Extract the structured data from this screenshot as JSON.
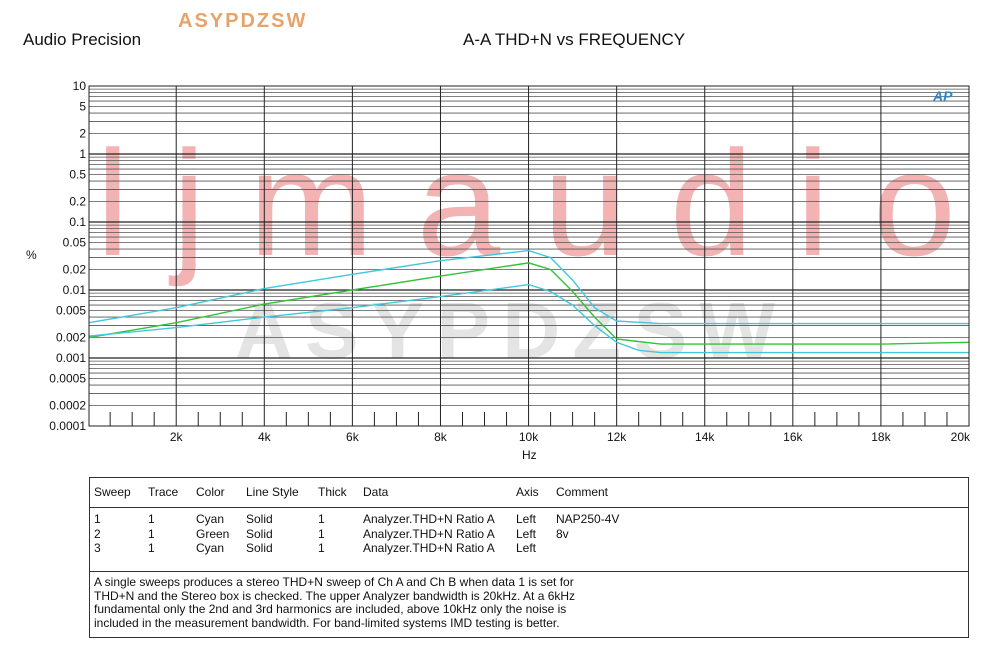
{
  "header": {
    "brand": "Audio Precision",
    "watermark_top": "ASYPDZSW",
    "title": "A-A THD+N vs FREQUENCY",
    "logo": "AP"
  },
  "chart_data": {
    "type": "line",
    "title": "A-A THD+N vs FREQUENCY",
    "xlabel": "Hz",
    "ylabel": "%",
    "xlim": [
      20,
      20000
    ],
    "ylim": [
      0.0001,
      10
    ],
    "yscale": "log",
    "grid": true,
    "x_ticks": [
      {
        "v": 2000,
        "label": "2k"
      },
      {
        "v": 4000,
        "label": "4k"
      },
      {
        "v": 6000,
        "label": "6k"
      },
      {
        "v": 8000,
        "label": "8k"
      },
      {
        "v": 10000,
        "label": "10k"
      },
      {
        "v": 12000,
        "label": "12k"
      },
      {
        "v": 14000,
        "label": "14k"
      },
      {
        "v": 16000,
        "label": "16k"
      },
      {
        "v": 18000,
        "label": "18k"
      },
      {
        "v": 20000,
        "label": "20k"
      }
    ],
    "y_ticks": [
      {
        "v": 10,
        "label": "10"
      },
      {
        "v": 5,
        "label": "5"
      },
      {
        "v": 2,
        "label": "2"
      },
      {
        "v": 1,
        "label": "1"
      },
      {
        "v": 0.5,
        "label": "0.5"
      },
      {
        "v": 0.2,
        "label": "0.2"
      },
      {
        "v": 0.1,
        "label": "0.1"
      },
      {
        "v": 0.05,
        "label": "0.05"
      },
      {
        "v": 0.02,
        "label": "0.02"
      },
      {
        "v": 0.01,
        "label": "0.01"
      },
      {
        "v": 0.005,
        "label": "0.005"
      },
      {
        "v": 0.002,
        "label": "0.002"
      },
      {
        "v": 0.001,
        "label": "0.001"
      },
      {
        "v": 0.0005,
        "label": "0.0005"
      },
      {
        "v": 0.0002,
        "label": "0.0002"
      },
      {
        "v": 0.0001,
        "label": "0.0001"
      }
    ],
    "series": [
      {
        "color": "#40c8dc",
        "x": [
          20,
          2000,
          4000,
          6000,
          8000,
          10000,
          10500,
          11000,
          11500,
          12000,
          13000,
          14000,
          16000,
          18000,
          20000
        ],
        "y": [
          0.0033,
          0.0055,
          0.0105,
          0.017,
          0.027,
          0.038,
          0.03,
          0.014,
          0.0055,
          0.0035,
          0.0032,
          0.0032,
          0.0032,
          0.0032,
          0.0032
        ]
      },
      {
        "color": "#33c23a",
        "x": [
          20,
          2000,
          4000,
          6000,
          8000,
          10000,
          10500,
          11000,
          11500,
          12000,
          13000,
          14000,
          16000,
          18000,
          20000
        ],
        "y": [
          0.002,
          0.0033,
          0.0062,
          0.01,
          0.016,
          0.025,
          0.02,
          0.0095,
          0.004,
          0.0019,
          0.0016,
          0.0016,
          0.0016,
          0.0016,
          0.0017
        ]
      },
      {
        "color": "#40c8dc",
        "x": [
          20,
          2000,
          4000,
          6000,
          8000,
          10000,
          10500,
          11000,
          11500,
          12000,
          12500,
          13000,
          14000,
          16000,
          18000,
          20000
        ],
        "y": [
          0.0021,
          0.0028,
          0.004,
          0.0055,
          0.008,
          0.012,
          0.0095,
          0.006,
          0.003,
          0.0017,
          0.0013,
          0.0012,
          0.0012,
          0.0012,
          0.0012,
          0.0012
        ]
      }
    ]
  },
  "legend": {
    "headers": [
      "Sweep",
      "Trace",
      "Color",
      "Line Style",
      "Thick",
      "Data",
      "Axis",
      "Comment"
    ],
    "rows": [
      {
        "sweep": "1",
        "trace": "1",
        "color": "Cyan",
        "style": "Solid",
        "thick": "1",
        "data": "Analyzer.THD+N Ratio A",
        "axis": "Left",
        "comment": "NAP250-4V"
      },
      {
        "sweep": "2",
        "trace": "1",
        "color": "Green",
        "style": "Solid",
        "thick": "1",
        "data": "Analyzer.THD+N Ratio A",
        "axis": "Left",
        "comment": "8v"
      },
      {
        "sweep": "3",
        "trace": "1",
        "color": "Cyan",
        "style": "Solid",
        "thick": "1",
        "data": "Analyzer.THD+N Ratio A",
        "axis": "Left",
        "comment": ""
      }
    ],
    "note_lines": [
      "A single sweeps produces a stereo THD+N sweep of Ch A and Ch B when data 1 is set for",
      "THD+N and the Stereo box is checked.  The upper Analyzer bandwidth is 20kHz.  At a 6kHz",
      "fundamental only the 2nd and 3rd harmonics are included, above 10kHz only the noise is",
      "included in the measurement bandwidth.  For band-limited systems IMD testing is better."
    ]
  },
  "watermarks": {
    "big": "l j m a u d i o",
    "mid": "ASYPDZSW"
  }
}
